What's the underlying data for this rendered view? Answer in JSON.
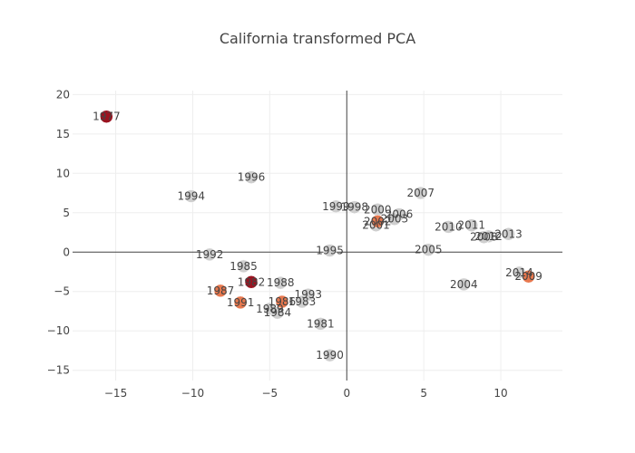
{
  "chart_data": {
    "type": "scatter",
    "title": "California transformed PCA",
    "xlabel": "",
    "ylabel": "",
    "xlim": [
      -17.8,
      14.0
    ],
    "ylim": [
      -16.3,
      20.5
    ],
    "xticks": [
      -15,
      -10,
      -5,
      0,
      5,
      10
    ],
    "yticks": [
      -15,
      -10,
      -5,
      0,
      5,
      10,
      15,
      20
    ],
    "grid": true,
    "zero_lines": true,
    "legend": "none",
    "colors": {
      "gray": "#cfcfcf",
      "orange": "#e8784e",
      "dark_red": "#9b1320",
      "label": "#444444",
      "grid": "#eeeeee",
      "zero_line": "#444444"
    },
    "points": [
      {
        "label": "1977",
        "x": -15.6,
        "y": 17.2,
        "color": "dark_red"
      },
      {
        "label": "1996",
        "x": -6.2,
        "y": 9.5,
        "color": "gray"
      },
      {
        "label": "1994",
        "x": -10.1,
        "y": 7.1,
        "color": "gray"
      },
      {
        "label": "1992",
        "x": -8.9,
        "y": -0.3,
        "color": "gray"
      },
      {
        "label": "1985",
        "x": -6.7,
        "y": -1.8,
        "color": "gray"
      },
      {
        "label": "1982",
        "x": -6.2,
        "y": -3.8,
        "color": "dark_red"
      },
      {
        "label": "1988",
        "x": -4.3,
        "y": -3.9,
        "color": "gray"
      },
      {
        "label": "1987",
        "x": -8.2,
        "y": -4.9,
        "color": "orange"
      },
      {
        "label": "1991",
        "x": -6.9,
        "y": -6.4,
        "color": "orange"
      },
      {
        "label": "1993",
        "x": -2.5,
        "y": -5.4,
        "color": "gray"
      },
      {
        "label": "1986",
        "x": -4.2,
        "y": -6.3,
        "color": "orange"
      },
      {
        "label": "1983",
        "x": -2.9,
        "y": -6.3,
        "color": "gray"
      },
      {
        "label": "1989",
        "x": -5.0,
        "y": -7.2,
        "color": "gray"
      },
      {
        "label": "1984",
        "x": -4.5,
        "y": -7.7,
        "color": "gray"
      },
      {
        "label": "1981",
        "x": -1.7,
        "y": -9.1,
        "color": "gray"
      },
      {
        "label": "1990",
        "x": -1.1,
        "y": -13.1,
        "color": "gray"
      },
      {
        "label": "1995",
        "x": -1.1,
        "y": 0.2,
        "color": "gray"
      },
      {
        "label": "1999",
        "x": -0.7,
        "y": 5.8,
        "color": "gray"
      },
      {
        "label": "1998",
        "x": 0.5,
        "y": 5.7,
        "color": "gray"
      },
      {
        "label": "2000",
        "x": 2.0,
        "y": 5.4,
        "color": "gray"
      },
      {
        "label": "2002",
        "x": 2.0,
        "y": 3.9,
        "color": "orange"
      },
      {
        "label": "2006",
        "x": 3.4,
        "y": 4.8,
        "color": "gray"
      },
      {
        "label": "2003",
        "x": 3.1,
        "y": 4.2,
        "color": "gray"
      },
      {
        "label": "2001",
        "x": 1.9,
        "y": 3.4,
        "color": "gray"
      },
      {
        "label": "2007",
        "x": 4.8,
        "y": 7.5,
        "color": "gray"
      },
      {
        "label": "2010",
        "x": 6.6,
        "y": 3.2,
        "color": "gray"
      },
      {
        "label": "2011",
        "x": 8.1,
        "y": 3.4,
        "color": "gray"
      },
      {
        "label": "2012",
        "x": 9.2,
        "y": 2.0,
        "color": "gray"
      },
      {
        "label": "2008",
        "x": 8.9,
        "y": 1.9,
        "color": "gray"
      },
      {
        "label": "2013",
        "x": 10.5,
        "y": 2.3,
        "color": "gray"
      },
      {
        "label": "2005",
        "x": 5.3,
        "y": 0.3,
        "color": "gray"
      },
      {
        "label": "2014",
        "x": 11.2,
        "y": -2.6,
        "color": "gray"
      },
      {
        "label": "2009",
        "x": 11.8,
        "y": -3.1,
        "color": "orange"
      },
      {
        "label": "2004",
        "x": 7.6,
        "y": -4.1,
        "color": "gray"
      }
    ]
  }
}
